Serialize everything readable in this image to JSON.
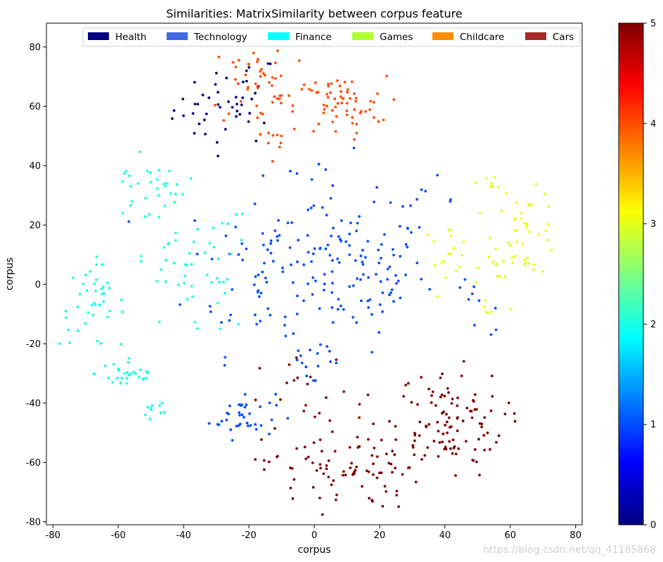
{
  "chart_data": {
    "type": "scatter",
    "title": "Similarities: MatrixSimilarity between corpus feature",
    "xlabel": "corpus",
    "ylabel": "corpus",
    "xlim": [
      -82,
      82
    ],
    "ylim": [
      -81,
      88
    ],
    "xticks": [
      -80,
      -60,
      -40,
      -20,
      0,
      20,
      40,
      60,
      80
    ],
    "yticks": [
      -80,
      -60,
      -40,
      -20,
      0,
      20,
      40,
      60,
      80
    ],
    "grid": false,
    "legend_position": "top",
    "colorbar": {
      "cmap": "jet",
      "range": [
        0,
        5
      ],
      "ticks": [
        0,
        1,
        2,
        3,
        4,
        5
      ]
    },
    "series": [
      {
        "name": "Health",
        "value": 0,
        "legend_color": "#000080",
        "clusters": [
          {
            "cx": -27,
            "cy": 59,
            "sx": 8,
            "sy": 6,
            "n": 40
          },
          {
            "cx": -20,
            "cy": 70,
            "sx": 4,
            "sy": 3,
            "n": 6
          }
        ]
      },
      {
        "name": "Technology",
        "value": 1,
        "legend_color": "#4169E1",
        "clusters": [
          {
            "cx": 12,
            "cy": 4,
            "sx": 11,
            "sy": 10,
            "n": 95
          },
          {
            "cx": -15,
            "cy": 5,
            "sx": 12,
            "sy": 14,
            "n": 65
          },
          {
            "cx": -22,
            "cy": -44,
            "sx": 5,
            "sy": 4,
            "n": 38
          },
          {
            "cx": 5,
            "cy": 25,
            "sx": 8,
            "sy": 9,
            "n": 20
          },
          {
            "cx": 0,
            "cy": -25,
            "sx": 5,
            "sy": 6,
            "n": 16
          },
          {
            "cx": 32,
            "cy": 28,
            "sx": 6,
            "sy": 4,
            "n": 12
          },
          {
            "cx": 50,
            "cy": -8,
            "sx": 6,
            "sy": 5,
            "n": 10
          }
        ]
      },
      {
        "name": "Finance",
        "value": 2,
        "legend_color": "#00FFFF",
        "clusters": [
          {
            "cx": -68,
            "cy": -7,
            "sx": 5,
            "sy": 7,
            "n": 40
          },
          {
            "cx": -57,
            "cy": -30,
            "sx": 5,
            "sy": 3,
            "n": 30
          },
          {
            "cx": -38,
            "cy": 5,
            "sx": 10,
            "sy": 12,
            "n": 55
          },
          {
            "cx": -55,
            "cy": 30,
            "sx": 5,
            "sy": 6,
            "n": 15
          },
          {
            "cx": -45,
            "cy": 33,
            "sx": 3,
            "sy": 4,
            "n": 12
          },
          {
            "cx": -47,
            "cy": -42,
            "sx": 3,
            "sy": 2,
            "n": 10
          }
        ]
      },
      {
        "name": "Games",
        "value": 3,
        "legend_color": "#ADFF2F",
        "clusters": [
          {
            "cx": 65,
            "cy": 17,
            "sx": 5,
            "sy": 7,
            "n": 45
          },
          {
            "cx": 40,
            "cy": 12,
            "sx": 4,
            "sy": 4,
            "n": 18
          },
          {
            "cx": 54,
            "cy": 34,
            "sx": 2,
            "sy": 2,
            "n": 8
          },
          {
            "cx": 54,
            "cy": -10,
            "sx": 2,
            "sy": 2,
            "n": 6
          },
          {
            "cx": 52,
            "cy": 5,
            "sx": 3,
            "sy": 4,
            "n": 7
          }
        ]
      },
      {
        "name": "Childcare",
        "value": 4,
        "legend_color": "#FF8C00",
        "clusters": [
          {
            "cx": 8,
            "cy": 60,
            "sx": 7,
            "sy": 5,
            "n": 60
          },
          {
            "cx": -15,
            "cy": 68,
            "sx": 9,
            "sy": 8,
            "n": 50
          },
          {
            "cx": -12,
            "cy": 50,
            "sx": 4,
            "sy": 3,
            "n": 10
          }
        ]
      },
      {
        "name": "Cars",
        "value": 5,
        "legend_color": "#A52A2A",
        "clusters": [
          {
            "cx": 40,
            "cy": -47,
            "sx": 9,
            "sy": 9,
            "n": 110
          },
          {
            "cx": 8,
            "cy": -62,
            "sx": 12,
            "sy": 7,
            "n": 85
          },
          {
            "cx": 0,
            "cy": -40,
            "sx": 8,
            "sy": 8,
            "n": 20
          }
        ]
      }
    ]
  },
  "watermark": "https://blog.csdn.net/qq_41185868"
}
